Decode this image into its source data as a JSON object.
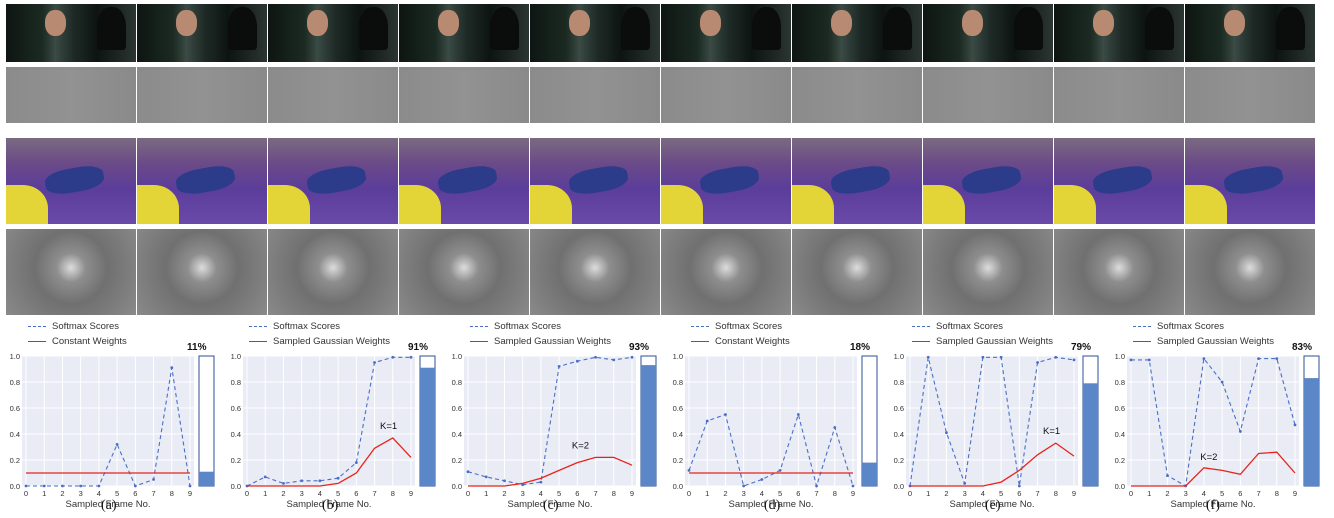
{
  "caption_letters": [
    "(a)",
    "(b)",
    "(c)",
    "(d)",
    "(e)",
    "(f)"
  ],
  "colors": {
    "scores": "#4a6fc7",
    "weights": "#e8231c",
    "panel_bg": "#e9ebf5",
    "bar_fill": "#5b86c8"
  },
  "chart_data": [
    {
      "type": "line",
      "legend": [
        "Softmax Scores",
        "Constant Weights"
      ],
      "x": [
        0,
        1,
        2,
        3,
        4,
        5,
        6,
        7,
        8,
        9
      ],
      "xlabel": "Sampled Frame No.",
      "ylim": [
        0,
        1.0
      ],
      "yticks": [
        "0.0",
        "0.2",
        "0.4",
        "0.6",
        "0.8",
        "1.0"
      ],
      "series": [
        {
          "name": "Softmax Scores",
          "values": [
            0.0,
            0.0,
            0.0,
            0.0,
            0.0,
            0.32,
            0.0,
            0.05,
            0.91,
            0.0
          ]
        },
        {
          "name": "Constant Weights",
          "values": [
            0.1,
            0.1,
            0.1,
            0.1,
            0.1,
            0.1,
            0.1,
            0.1,
            0.1,
            0.1
          ]
        }
      ],
      "bar_label": "11%",
      "bar_value": 0.11,
      "annotation": ""
    },
    {
      "type": "line",
      "legend": [
        "Softmax Scores",
        "Sampled Gaussian Weights"
      ],
      "x": [
        0,
        1,
        2,
        3,
        4,
        5,
        6,
        7,
        8,
        9
      ],
      "xlabel": "Sampled Frame No.",
      "ylim": [
        0,
        1.0
      ],
      "yticks": [
        "0.0",
        "0.2",
        "0.4",
        "0.6",
        "0.8",
        "1.0"
      ],
      "series": [
        {
          "name": "Softmax Scores",
          "values": [
            0.0,
            0.07,
            0.02,
            0.04,
            0.04,
            0.06,
            0.18,
            0.95,
            0.99,
            0.99
          ]
        },
        {
          "name": "Sampled Gaussian Weights",
          "values": [
            0.0,
            0.0,
            0.0,
            0.0,
            0.0,
            0.02,
            0.1,
            0.29,
            0.37,
            0.22
          ]
        }
      ],
      "bar_label": "91%",
      "bar_value": 0.91,
      "annotation": "K=1",
      "annotation_x": 7.3,
      "annotation_y": 0.44
    },
    {
      "type": "line",
      "legend": [
        "Softmax Scores",
        "Sampled Gaussian Weights"
      ],
      "x": [
        0,
        1,
        2,
        3,
        4,
        5,
        6,
        7,
        8,
        9
      ],
      "xlabel": "Sampled Frame No.",
      "ylim": [
        0,
        1.0
      ],
      "yticks": [
        "0.0",
        "0.2",
        "0.4",
        "0.6",
        "0.8",
        "1.0"
      ],
      "series": [
        {
          "name": "Softmax Scores",
          "values": [
            0.11,
            0.07,
            0.04,
            0.01,
            0.03,
            0.92,
            0.96,
            0.99,
            0.97,
            0.99
          ]
        },
        {
          "name": "Sampled Gaussian Weights",
          "values": [
            0.0,
            0.0,
            0.0,
            0.02,
            0.06,
            0.12,
            0.18,
            0.22,
            0.22,
            0.16
          ]
        }
      ],
      "bar_label": "93%",
      "bar_value": 0.93,
      "annotation": "K=2",
      "annotation_x": 5.7,
      "annotation_y": 0.29
    },
    {
      "type": "line",
      "legend": [
        "Softmax Scores",
        "Constant Weights"
      ],
      "x": [
        0,
        1,
        2,
        3,
        4,
        5,
        6,
        7,
        8,
        9
      ],
      "xlabel": "Sampled Frame No.",
      "ylim": [
        0,
        1.0
      ],
      "yticks": [
        "0.0",
        "0.2",
        "0.4",
        "0.6",
        "0.8",
        "1.0"
      ],
      "series": [
        {
          "name": "Softmax Scores",
          "values": [
            0.12,
            0.5,
            0.55,
            0.0,
            0.05,
            0.12,
            0.55,
            0.0,
            0.45,
            0.0
          ]
        },
        {
          "name": "Constant Weights",
          "values": [
            0.1,
            0.1,
            0.1,
            0.1,
            0.1,
            0.1,
            0.1,
            0.1,
            0.1,
            0.1
          ]
        }
      ],
      "bar_label": "18%",
      "bar_value": 0.18,
      "annotation": ""
    },
    {
      "type": "line",
      "legend": [
        "Softmax Scores",
        "Sampled Gaussian Weights"
      ],
      "x": [
        0,
        1,
        2,
        3,
        4,
        5,
        6,
        7,
        8,
        9
      ],
      "xlabel": "Sampled Frame No.",
      "ylim": [
        0,
        1.0
      ],
      "yticks": [
        "0.0",
        "0.2",
        "0.4",
        "0.6",
        "0.8",
        "1.0"
      ],
      "series": [
        {
          "name": "Softmax Scores",
          "values": [
            0.0,
            0.99,
            0.41,
            0.02,
            0.99,
            0.99,
            0.0,
            0.95,
            0.99,
            0.97
          ]
        },
        {
          "name": "Sampled Gaussian Weights",
          "values": [
            0.0,
            0.0,
            0.0,
            0.0,
            0.0,
            0.03,
            0.12,
            0.24,
            0.33,
            0.23
          ]
        }
      ],
      "bar_label": "79%",
      "bar_value": 0.79,
      "annotation": "K=1",
      "annotation_x": 7.3,
      "annotation_y": 0.4
    },
    {
      "type": "line",
      "legend": [
        "Softmax Scores",
        "Sampled Gaussian Weights"
      ],
      "x": [
        0,
        1,
        2,
        3,
        4,
        5,
        6,
        7,
        8,
        9
      ],
      "xlabel": "Sampled Frame No.",
      "ylim": [
        0,
        1.0
      ],
      "yticks": [
        "0.0",
        "0.2",
        "0.4",
        "0.6",
        "0.8",
        "1.0"
      ],
      "series": [
        {
          "name": "Softmax Scores",
          "values": [
            0.97,
            0.97,
            0.08,
            0.0,
            0.98,
            0.8,
            0.42,
            0.98,
            0.98,
            0.47
          ]
        },
        {
          "name": "Sampled Gaussian Weights",
          "values": [
            0.0,
            0.0,
            0.0,
            0.0,
            0.14,
            0.12,
            0.09,
            0.25,
            0.26,
            0.1
          ]
        }
      ],
      "bar_label": "83%",
      "bar_value": 0.83,
      "annotation": "K=2",
      "annotation_x": 3.8,
      "annotation_y": 0.2
    }
  ]
}
